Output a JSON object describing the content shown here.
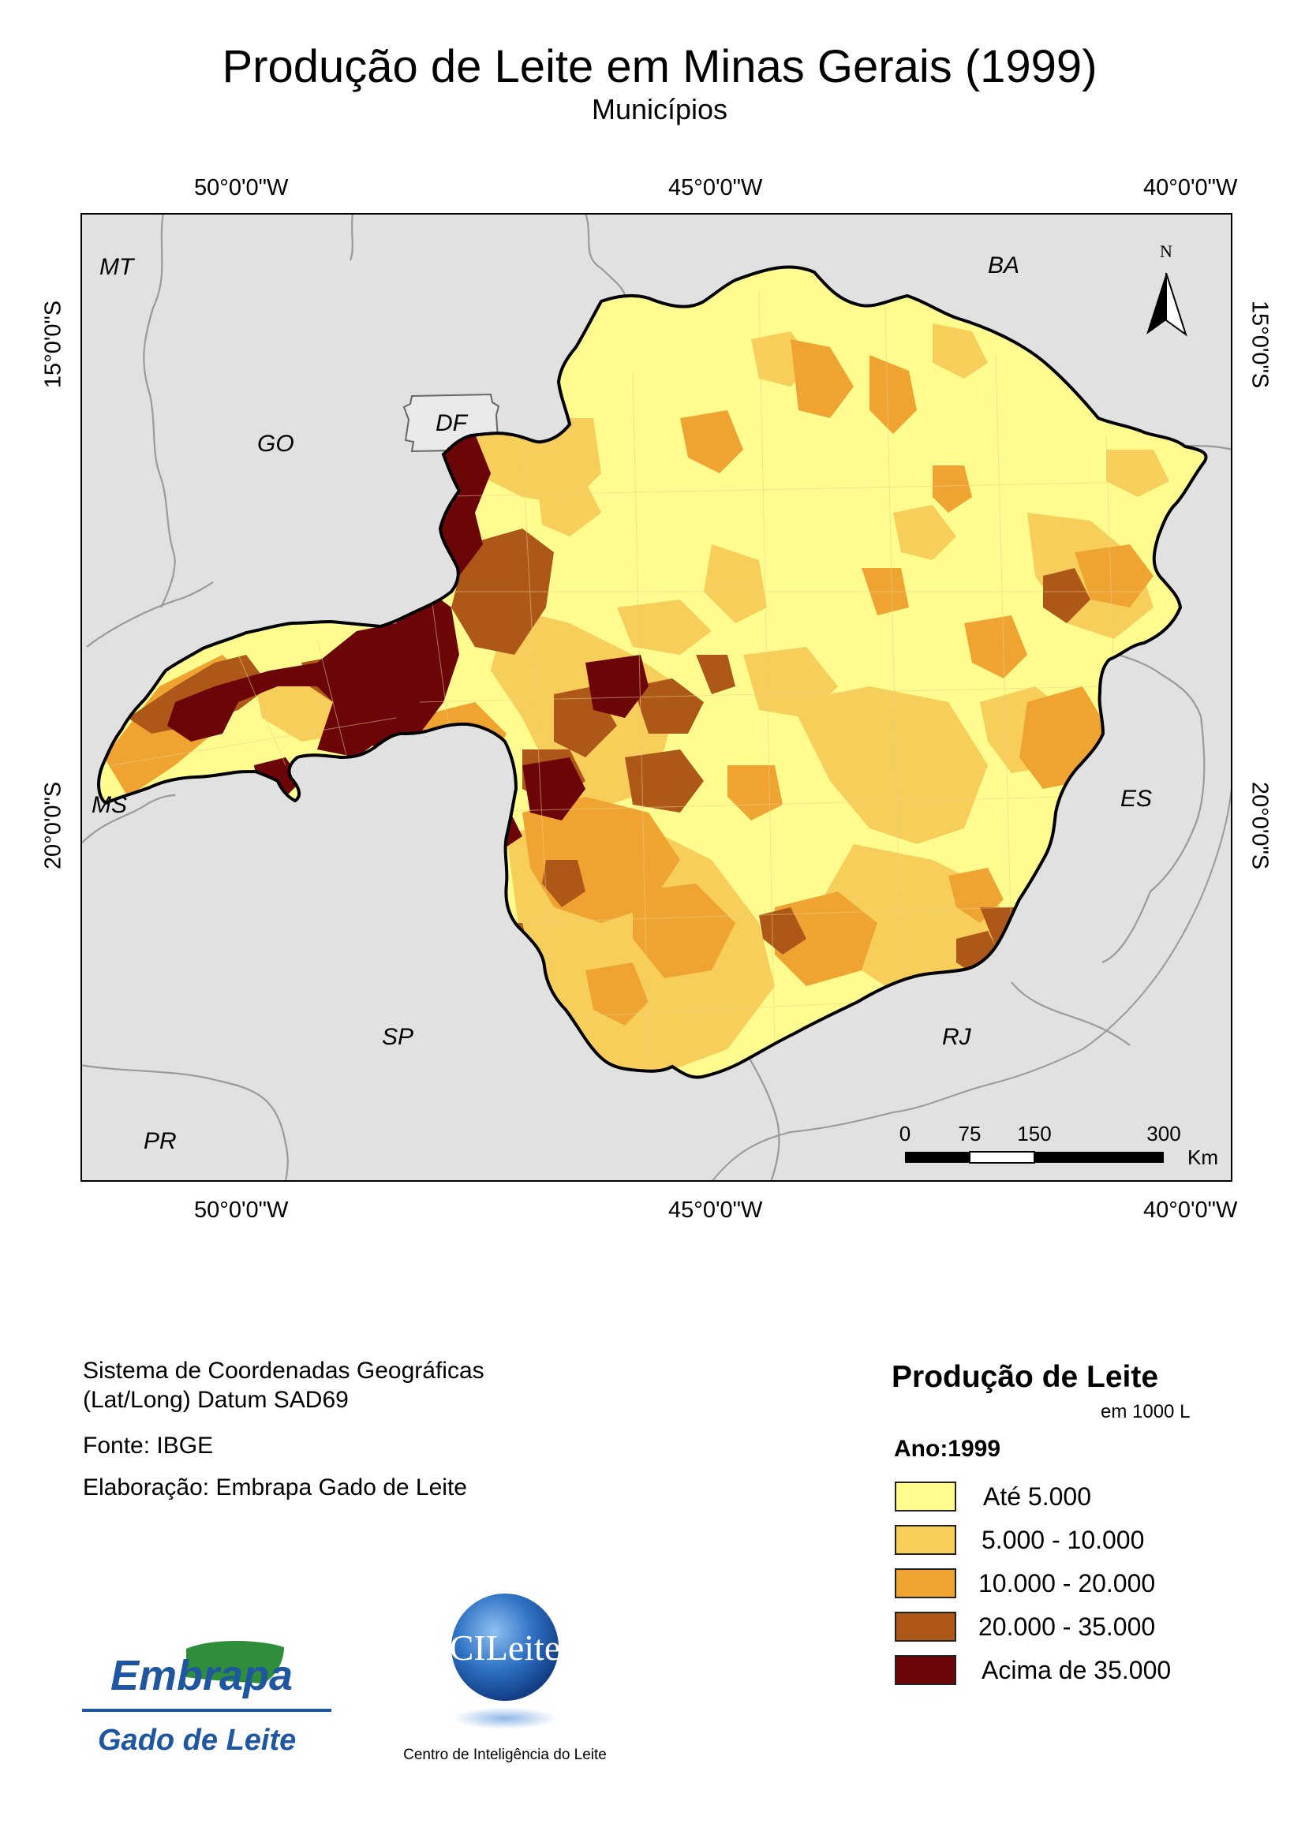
{
  "title": "Produção de Leite em Minas Gerais (1999)",
  "subtitle": "Municípios",
  "graticule": {
    "lon_labels": [
      "50°0'0\"W",
      "45°0'0\"W",
      "40°0'0\"W"
    ],
    "lat_labels": [
      "15°0'0\"S",
      "20°0'0\"S"
    ]
  },
  "states": {
    "mt": "MT",
    "go": "GO",
    "df": "DF",
    "ba": "BA",
    "ms": "MS",
    "es": "ES",
    "sp": "SP",
    "rj": "RJ",
    "pr": "PR"
  },
  "north_arrow": "N",
  "scale_bar": {
    "ticks": [
      "0",
      "75",
      "150",
      "300"
    ],
    "unit": "Km"
  },
  "info": {
    "system_line1": "Sistema de Coordenadas Geográficas",
    "system_line2": "(Lat/Long) Datum SAD69",
    "source": "Fonte: IBGE",
    "author": "Elaboração: Embrapa Gado de Leite"
  },
  "legend": {
    "title": "Produção de Leite",
    "unit": "em 1000 L",
    "year": "Ano:1999",
    "classes": [
      {
        "label": "Até 5.000",
        "color": "#FEFC8E"
      },
      {
        "label": "5.000 - 10.000",
        "color": "#F8CE5B"
      },
      {
        "label": "10.000 - 20.000",
        "color": "#EFA432"
      },
      {
        "label": "20.000 - 35.000",
        "color": "#AD5718"
      },
      {
        "label": "Acima de 35.000",
        "color": "#6B0508"
      }
    ]
  },
  "logos": {
    "embrapa_name": "Embrapa",
    "embrapa_unit": "Gado de Leite",
    "cileite_name": "CILeite",
    "cileite_caption": "Centro de Inteligência do Leite"
  },
  "colors": {
    "background_states": "#E1E1E1",
    "state_borders": "#9A9A9A",
    "embrapa_blue": "#1E56A0",
    "embrapa_green": "#2F8E3A",
    "cileite_blue": "#1F5DA8"
  }
}
